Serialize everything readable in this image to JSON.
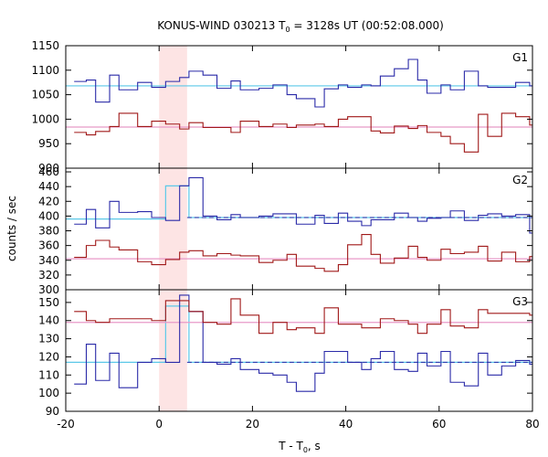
{
  "title": {
    "prefix": "KONUS-WIND 030213 T",
    "sub": "0",
    "suffix": " = 3128s UT (00:52:08.000)"
  },
  "ylabel": "counts / sec",
  "xlabel": {
    "prefix": "T - T",
    "sub": "0",
    "suffix": ", s"
  },
  "colors": {
    "blue_step": "#2a2aa8",
    "red_step": "#a01818",
    "blue_bg": "#5bc8e8",
    "red_bg": "#e89ac8",
    "highlight": "#fde4e4",
    "frame": "#000000"
  },
  "chart_data": {
    "type": "line",
    "step": true,
    "xlim": [
      -20,
      80
    ],
    "xticks": [
      -20,
      0,
      20,
      40,
      60,
      80
    ],
    "x_edges": [
      -18.2,
      -15.6,
      -13.6,
      -10.6,
      -8.6,
      -4.6,
      -1.6,
      1.4,
      4.4,
      6.4,
      9.4,
      12.4,
      15.4,
      17.4,
      21.4,
      24.4,
      27.4,
      29.4,
      33.4,
      35.4,
      38.4,
      40.4,
      43.4,
      45.4,
      47.4,
      50.4,
      53.4,
      55.4,
      57.4,
      60.4,
      62.4,
      65.4,
      68.4,
      70.4,
      73.4,
      76.4,
      79.4,
      80
    ],
    "highlight_interval": [
      0,
      6
    ],
    "panels": [
      {
        "name": "G1",
        "ylim": [
          900,
          1150
        ],
        "yticks": [
          900,
          950,
          1000,
          1050,
          1100,
          1150
        ],
        "series": [
          {
            "color": "blue",
            "background": 1068,
            "values": [
              1077,
              1080,
              1035,
              1090,
              1060,
              1075,
              1065,
              1077,
              1085,
              1098,
              1090,
              1063,
              1078,
              1060,
              1063,
              1070,
              1050,
              1042,
              1025,
              1062,
              1070,
              1065,
              1070,
              1068,
              1088,
              1103,
              1122,
              1080,
              1053,
              1070,
              1060,
              1098,
              1068,
              1065,
              1065,
              1075,
              1068
            ]
          },
          {
            "color": "red",
            "background": 984,
            "values": [
              973,
              968,
              975,
              985,
              1012,
              985,
              996,
              990,
              980,
              993,
              983,
              983,
              973,
              996,
              985,
              990,
              983,
              988,
              990,
              985,
              1000,
              1005,
              1005,
              976,
              972,
              986,
              981,
              987,
              973,
              965,
              950,
              933,
              1010,
              965,
              1012,
              1005,
              988
            ]
          }
        ]
      },
      {
        "name": "G2",
        "ylim": [
          300,
          465
        ],
        "yticks": [
          300,
          320,
          340,
          360,
          380,
          400,
          420,
          440,
          460
        ],
        "series": [
          {
            "color": "blue",
            "background": 398,
            "background_steps": [
              {
                "x0": -20,
                "x1": 1.4,
                "value": 396
              },
              {
                "x0": 1.4,
                "x1": 6.4,
                "value": 441
              },
              {
                "x0": 6.4,
                "x1": 80,
                "value": 398
              }
            ],
            "values": [
              389,
              409,
              384,
              420,
              405,
              406,
              398,
              394,
              441,
              452,
              400,
              395,
              402,
              398,
              400,
              403,
              403,
              389,
              401,
              390,
              404,
              393,
              387,
              395,
              395,
              404,
              398,
              393,
              397,
              398,
              407,
              394,
              401,
              403,
              400,
              402,
              377
            ]
          },
          {
            "color": "red",
            "background": 342,
            "values": [
              344,
              360,
              367,
              358,
              354,
              338,
              334,
              341,
              351,
              353,
              346,
              349,
              347,
              346,
              337,
              340,
              348,
              332,
              329,
              325,
              334,
              361,
              375,
              348,
              336,
              343,
              359,
              344,
              340,
              355,
              349,
              351,
              359,
              339,
              351,
              338,
              345
            ]
          }
        ]
      },
      {
        "name": "G3",
        "ylim": [
          90,
          157
        ],
        "yticks": [
          90,
          100,
          110,
          120,
          130,
          140,
          150
        ],
        "series": [
          {
            "color": "blue",
            "background": 117,
            "background_steps": [
              {
                "x0": -20,
                "x1": 1.4,
                "value": 117
              },
              {
                "x0": 1.4,
                "x1": 6.4,
                "value": 148
              },
              {
                "x0": 6.4,
                "x1": 80,
                "value": 117
              }
            ],
            "values": [
              105,
              127,
              107,
              122,
              103,
              117,
              119,
              117,
              154,
              145,
              117,
              116,
              119,
              113,
              111,
              110,
              106,
              101,
              111,
              123,
              123,
              117,
              113,
              119,
              123,
              113,
              112,
              122,
              115,
              123,
              106,
              104,
              122,
              110,
              115,
              118,
              116
            ]
          },
          {
            "color": "red",
            "background": 139,
            "values": [
              145,
              140,
              139,
              141,
              141,
              141,
              140,
              151,
              151,
              145,
              139,
              138,
              152,
              143,
              133,
              139,
              135,
              136,
              133,
              147,
              138,
              138,
              136,
              136,
              141,
              140,
              138,
              133,
              138,
              146,
              137,
              136,
              146,
              144,
              144,
              144,
              143
            ]
          }
        ]
      }
    ]
  }
}
